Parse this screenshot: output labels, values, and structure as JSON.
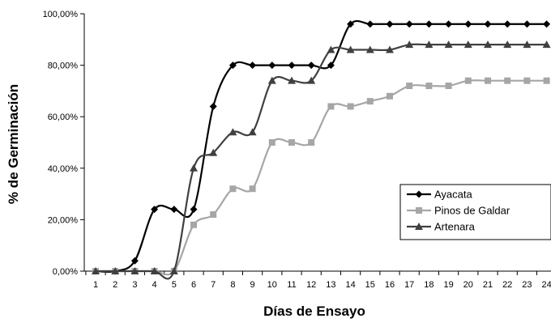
{
  "chart_data": {
    "type": "line",
    "title": "",
    "xlabel": "Días de Ensayo",
    "ylabel": "% de Germinación",
    "categories": [
      "1",
      "2",
      "3",
      "4",
      "5",
      "6",
      "7",
      "8",
      "9",
      "10",
      "11",
      "12",
      "13",
      "14",
      "15",
      "16",
      "17",
      "18",
      "19",
      "20",
      "21",
      "22",
      "23",
      "24"
    ],
    "yticks": [
      "0,00%",
      "20,00%",
      "40,00%",
      "60,00%",
      "80,00%",
      "100,00%"
    ],
    "ylim": [
      0,
      100
    ],
    "grid": false,
    "legend_position": "right",
    "series": [
      {
        "name": "Ayacata",
        "marker": "diamond",
        "color": "#000000",
        "values": [
          0,
          0,
          4,
          24,
          24,
          24,
          64,
          80,
          80,
          80,
          80,
          80,
          80,
          96,
          96,
          96,
          96,
          96,
          96,
          96,
          96,
          96,
          96,
          96
        ]
      },
      {
        "name": "Pinos de Galdar",
        "marker": "square",
        "color": "#a6a6a6",
        "values": [
          0,
          0,
          0,
          0,
          0,
          18,
          22,
          32,
          32,
          50,
          50,
          50,
          64,
          64,
          66,
          68,
          72,
          72,
          72,
          74,
          74,
          74,
          74,
          74
        ]
      },
      {
        "name": "Artenara",
        "marker": "triangle",
        "color": "#404040",
        "values": [
          0,
          0,
          0,
          0,
          0,
          40,
          46,
          54,
          54,
          74,
          74,
          74,
          86,
          86,
          86,
          86,
          88,
          88,
          88,
          88,
          88,
          88,
          88,
          88
        ]
      }
    ]
  }
}
